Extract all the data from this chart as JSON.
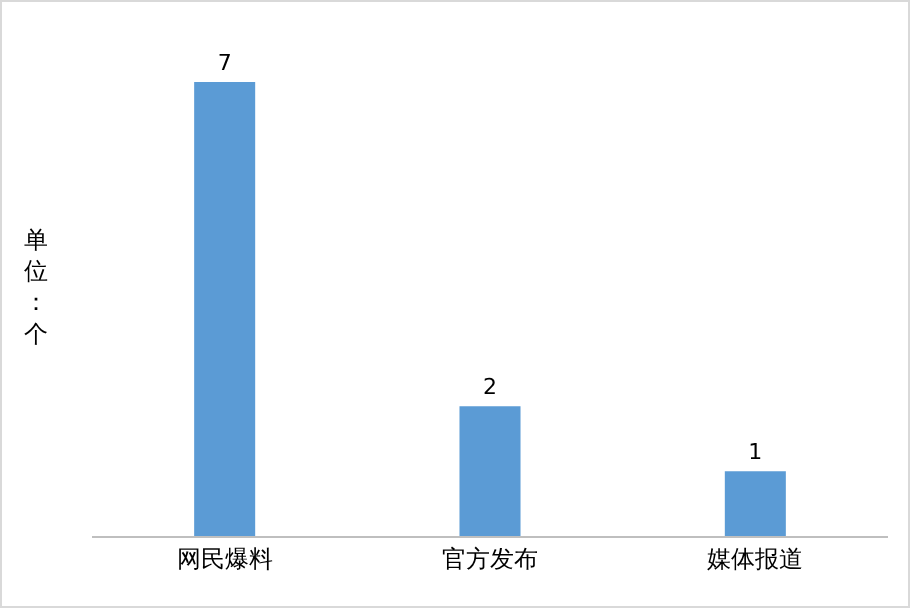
{
  "chart_data": {
    "type": "bar",
    "ylabel": "单位：个",
    "categories": [
      "网民爆料",
      "官方发布",
      "媒体报道"
    ],
    "values": [
      7,
      2,
      1
    ],
    "color": "#5b9bd5",
    "data_labels": true
  }
}
